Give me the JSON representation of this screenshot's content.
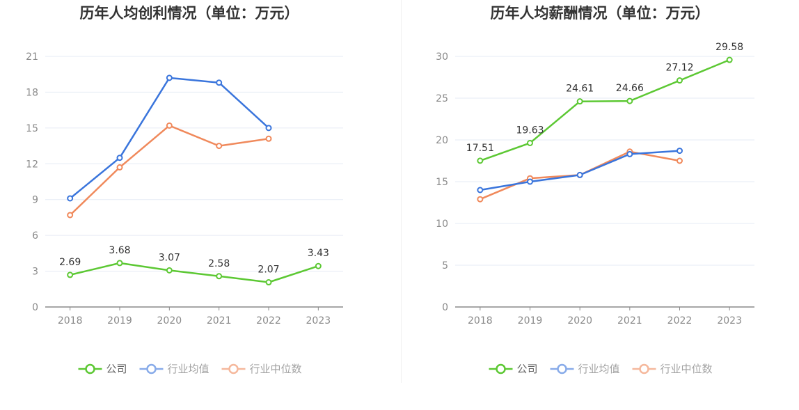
{
  "chart_data": [
    {
      "type": "line",
      "title": "历年人均创利情况（单位：万元）",
      "categories": [
        "2018",
        "2019",
        "2020",
        "2021",
        "2022",
        "2023"
      ],
      "ylim": [
        0,
        21
      ],
      "yticks": [
        0,
        3,
        6,
        9,
        12,
        15,
        18,
        21
      ],
      "grid": true,
      "legend_position": "bottom-center",
      "series": [
        {
          "name": "公司",
          "color": "#5cc833",
          "values": [
            2.69,
            3.68,
            3.07,
            2.58,
            2.07,
            3.43
          ],
          "labels": [
            "2.69",
            "3.68",
            "3.07",
            "2.58",
            "2.07",
            "3.43"
          ]
        },
        {
          "name": "行业均值",
          "color": "#3a75dc",
          "values": [
            9.1,
            12.5,
            19.2,
            18.8,
            15.0,
            null
          ]
        },
        {
          "name": "行业中位数",
          "color": "#f0895b",
          "values": [
            7.7,
            11.7,
            15.2,
            13.5,
            14.1,
            null
          ]
        }
      ]
    },
    {
      "type": "line",
      "title": "历年人均薪酬情况（单位：万元）",
      "categories": [
        "2018",
        "2019",
        "2020",
        "2021",
        "2022",
        "2023"
      ],
      "ylim": [
        0,
        30
      ],
      "yticks": [
        0,
        5,
        10,
        15,
        20,
        25,
        30
      ],
      "grid": true,
      "legend_position": "bottom-center",
      "series": [
        {
          "name": "公司",
          "color": "#5cc833",
          "values": [
            17.51,
            19.63,
            24.61,
            24.66,
            27.12,
            29.58
          ],
          "labels": [
            "17.51",
            "19.63",
            "24.61",
            "24.66",
            "27.12",
            "29.58"
          ]
        },
        {
          "name": "行业均值",
          "color": "#3a75dc",
          "values": [
            14.0,
            15.0,
            15.8,
            18.3,
            18.7,
            null
          ]
        },
        {
          "name": "行业中位数",
          "color": "#f0895b",
          "values": [
            12.9,
            15.4,
            15.8,
            18.6,
            17.5,
            null
          ]
        }
      ]
    }
  ]
}
